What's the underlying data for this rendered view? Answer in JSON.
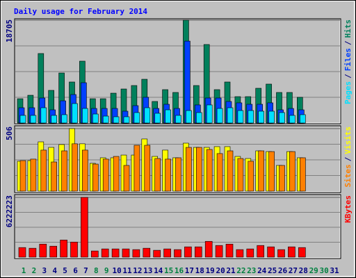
{
  "title": "Daily usage for February 2014",
  "chart_data": [
    {
      "type": "bar",
      "ylim": [
        0,
        18705
      ],
      "yticks": [
        18705
      ],
      "legend_separator": "/",
      "series": [
        {
          "name": "Hits",
          "color": "#00805c",
          "values": [
            4420,
            5050,
            12640,
            5940,
            9100,
            7460,
            11250,
            4420,
            4420,
            5430,
            6190,
            6820,
            7960,
            3920,
            6070,
            5560,
            18705,
            6820,
            14280,
            6070,
            7460,
            4800,
            4800,
            6320,
            7080,
            5560,
            5560,
            4680,
            null,
            null,
            null
          ]
        },
        {
          "name": "Files",
          "color": "#0040ff",
          "values": [
            2780,
            2780,
            4550,
            2400,
            4040,
            5180,
            7330,
            2650,
            2650,
            2650,
            2150,
            3160,
            4680,
            2650,
            3410,
            2650,
            14900,
            3290,
            4550,
            4550,
            3920,
            3670,
            3410,
            3410,
            3670,
            2400,
            2650,
            2400,
            null,
            null,
            null
          ]
        },
        {
          "name": "Pages",
          "color": "#00e0ff",
          "values": [
            1390,
            1390,
            2780,
            1390,
            1520,
            3540,
            2650,
            1640,
            1260,
            1140,
            1140,
            1900,
            2780,
            1770,
            2400,
            1390,
            2270,
            1900,
            3290,
            2650,
            2780,
            2270,
            2270,
            2150,
            2150,
            1900,
            1390,
            1520,
            null,
            null,
            null
          ]
        }
      ]
    },
    {
      "type": "bar",
      "ylim": [
        0,
        506
      ],
      "yticks": [
        506
      ],
      "legend_separator": "/",
      "series": [
        {
          "name": "Visits",
          "color": "#ffff00",
          "values": [
            242,
            247,
            399,
            354,
            377,
            506,
            383,
            225,
            270,
            270,
            292,
            292,
            422,
            281,
            332,
            270,
            388,
            354,
            354,
            360,
            360,
            281,
            264,
            326,
            320,
            208,
            320,
            270,
            null,
            null,
            null
          ]
        },
        {
          "name": "Sites",
          "color": "#ff8000",
          "values": [
            247,
            259,
            332,
            236,
            326,
            383,
            332,
            219,
            259,
            281,
            208,
            371,
            371,
            264,
            259,
            270,
            354,
            354,
            337,
            304,
            326,
            264,
            242,
            326,
            320,
            208,
            320,
            270,
            null,
            null,
            null
          ]
        }
      ]
    },
    {
      "type": "bar",
      "ylim": [
        0,
        6222223
      ],
      "yticks": [
        6222223
      ],
      "legend_separator": "/",
      "categories": [
        "1",
        "2",
        "3",
        "4",
        "5",
        "6",
        "7",
        "8",
        "9",
        "10",
        "11",
        "12",
        "13",
        "14",
        "15",
        "16",
        "17",
        "18",
        "19",
        "20",
        "21",
        "22",
        "23",
        "24",
        "25",
        "26",
        "27",
        "28",
        "29",
        "30",
        "31"
      ],
      "category_colors": [
        "#008040",
        "#008040",
        "#000080",
        "#000080",
        "#000080",
        "#000080",
        "#000080",
        "#008040",
        "#008040",
        "#000080",
        "#000080",
        "#000080",
        "#000080",
        "#000080",
        "#008040",
        "#008040",
        "#000080",
        "#000080",
        "#000080",
        "#000080",
        "#000080",
        "#008040",
        "#008040",
        "#000080",
        "#000080",
        "#000080",
        "#000080",
        "#000080",
        "#008040",
        "#008040",
        "#000080"
      ],
      "series": [
        {
          "name": "KBytes",
          "color": "#ff0000",
          "values": [
            1001000,
            930000,
            1359000,
            1144000,
            1788000,
            1574000,
            6222223,
            644000,
            858000,
            858000,
            858000,
            787000,
            930000,
            715000,
            858000,
            787000,
            1073000,
            1073000,
            1645000,
            1216000,
            1359000,
            787000,
            858000,
            1216000,
            1073000,
            787000,
            1073000,
            1001000,
            null,
            null,
            null
          ]
        }
      ]
    }
  ]
}
